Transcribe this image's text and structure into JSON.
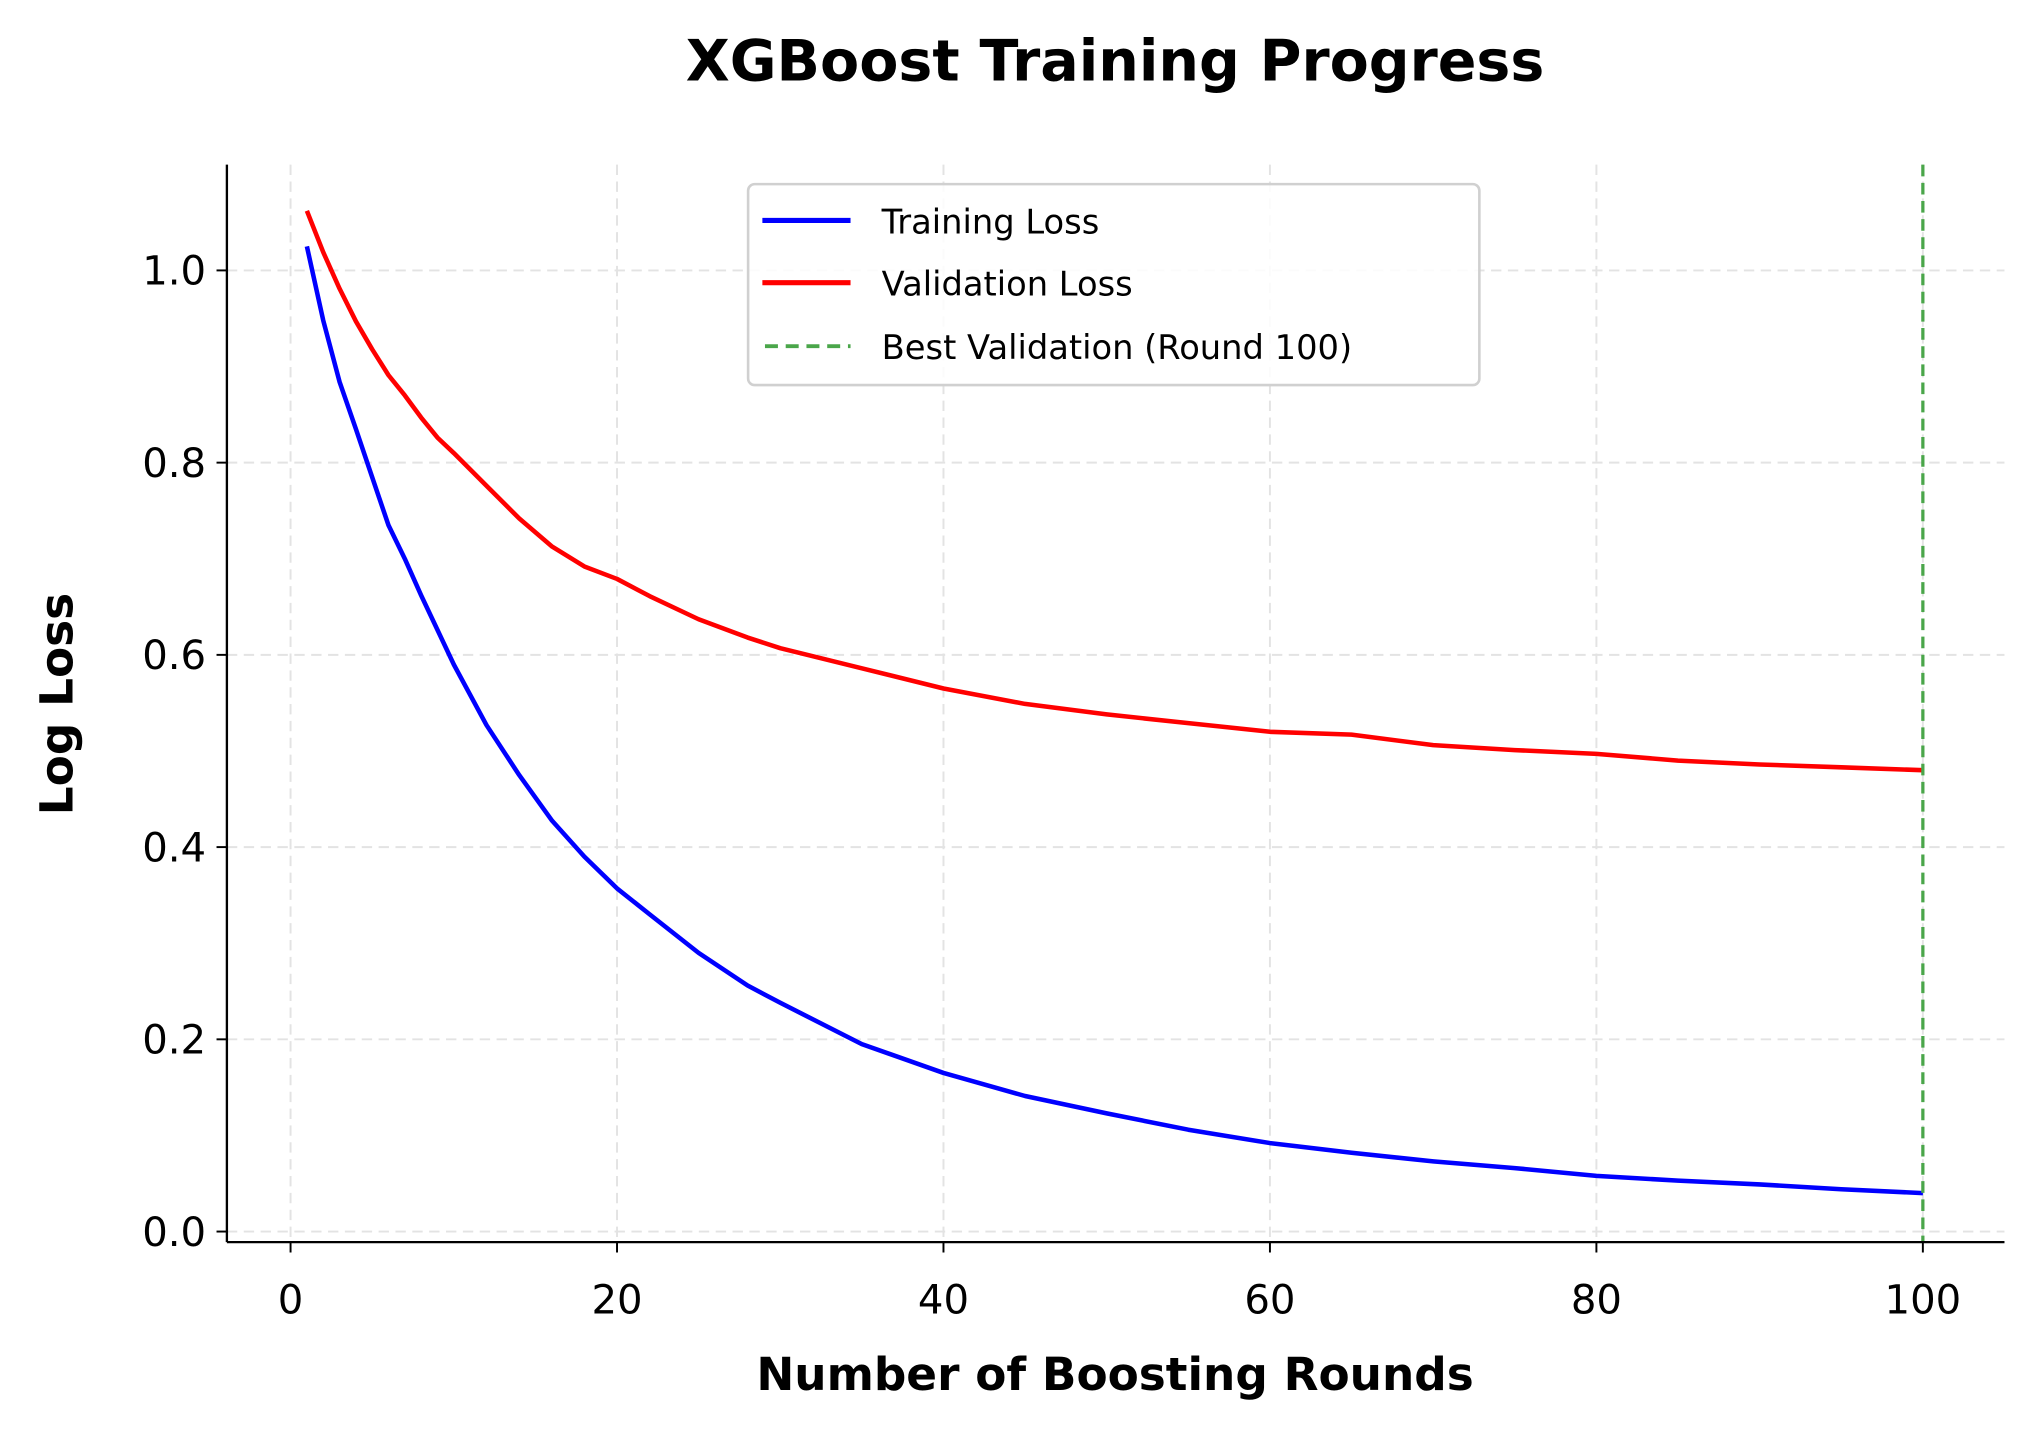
{
  "chart_data": {
    "type": "line",
    "title": "XGBoost Training Progress",
    "xlabel": "Number of Boosting Rounds",
    "ylabel": "Log Loss",
    "xlim": [
      -3.9,
      105
    ],
    "ylim": [
      -0.011,
      1.11
    ],
    "xticks": [
      0,
      20,
      40,
      60,
      80,
      100
    ],
    "xtick_labels": [
      "0",
      "20",
      "40",
      "60",
      "80",
      "100"
    ],
    "yticks": [
      0.0,
      0.2,
      0.4,
      0.6,
      0.8,
      1.0
    ],
    "ytick_labels": [
      "0.0",
      "0.2",
      "0.4",
      "0.6",
      "0.8",
      "1.0"
    ],
    "grid": true,
    "legend_position": "top-center",
    "x": [
      1,
      2,
      3,
      4,
      5,
      6,
      7,
      8,
      9,
      10,
      12,
      14,
      16,
      18,
      20,
      22,
      25,
      28,
      30,
      35,
      40,
      45,
      50,
      55,
      60,
      65,
      70,
      75,
      80,
      85,
      90,
      95,
      100
    ],
    "series": [
      {
        "name": "Training Loss",
        "color": "#0000ff",
        "values": [
          1.025,
          0.948,
          0.884,
          0.835,
          0.785,
          0.735,
          0.7,
          0.662,
          0.626,
          0.59,
          0.527,
          0.475,
          0.428,
          0.39,
          0.357,
          0.33,
          0.29,
          0.256,
          0.238,
          0.195,
          0.165,
          0.141,
          0.123,
          0.106,
          0.092,
          0.082,
          0.073,
          0.066,
          0.058,
          0.053,
          0.049,
          0.044,
          0.04
        ]
      },
      {
        "name": "Validation Loss",
        "color": "#ff0000",
        "values": [
          1.062,
          1.019,
          0.981,
          0.947,
          0.918,
          0.891,
          0.87,
          0.847,
          0.826,
          0.81,
          0.776,
          0.742,
          0.713,
          0.692,
          0.679,
          0.661,
          0.637,
          0.618,
          0.607,
          0.586,
          0.565,
          0.549,
          0.538,
          0.529,
          0.52,
          0.517,
          0.506,
          0.501,
          0.497,
          0.49,
          0.486,
          0.483,
          0.48
        ]
      }
    ],
    "vline": {
      "name": "Best Validation (Round 100)",
      "x": 100,
      "color": "#4aa64a",
      "style": "dashed"
    }
  }
}
